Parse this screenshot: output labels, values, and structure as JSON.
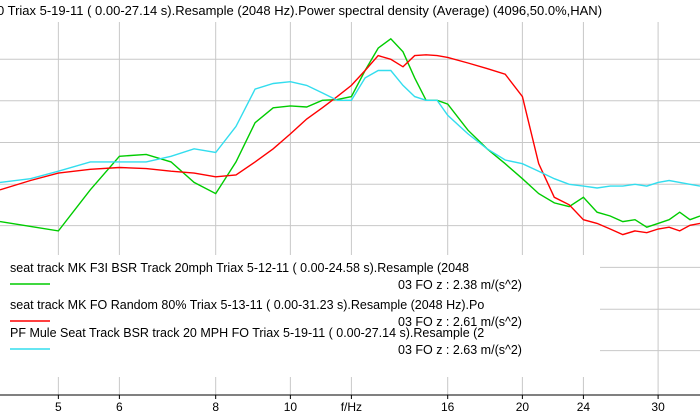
{
  "chart_data": {
    "type": "line",
    "title": "0 Triax 5-19-11 ( 0.00-27.14 s).Resample (2048 Hz).Power spectral density (Average) (4096,50.0%,HAN)",
    "xlabel": "f/Hz",
    "ylabel": "",
    "x_scale": "log",
    "xlim": [
      4.2,
      34
    ],
    "ylim": [
      0,
      1
    ],
    "grid": true,
    "x_ticks": [
      {
        "value": 5,
        "label": "5"
      },
      {
        "value": 6,
        "label": "6"
      },
      {
        "value": 8,
        "label": "8"
      },
      {
        "value": 10,
        "label": "10"
      },
      {
        "value": 12,
        "label": "f/Hz"
      },
      {
        "value": 16,
        "label": "16"
      },
      {
        "value": 20,
        "label": "20"
      },
      {
        "value": 24,
        "label": "24"
      },
      {
        "value": 30,
        "label": "30"
      }
    ],
    "y_grid": [
      0.119,
      0.23,
      0.342,
      0.454,
      0.565,
      0.677,
      0.789,
      0.9
    ],
    "series": [
      {
        "name": "seat track MK  F3I BSR Track 20mph Triax 5-12-11 ( 0.00-24.58 s).Resample (2048",
        "value_label": "03 FO z   : 2.38 m/(s^2)",
        "color": "#00cc00",
        "x": [
          4.2,
          4.6,
          5.0,
          5.5,
          6.0,
          6.5,
          7.0,
          7.5,
          8.0,
          8.5,
          9.0,
          9.5,
          10.0,
          10.5,
          11.0,
          11.5,
          12.0,
          12.5,
          13.0,
          13.5,
          14.0,
          14.5,
          15.0,
          15.5,
          16.0,
          17.0,
          18.0,
          19.0,
          20.0,
          21.0,
          22.0,
          23.0,
          24.0,
          25.0,
          26.0,
          27.0,
          28.0,
          29.0,
          30.0,
          31.0,
          32.0,
          33.0,
          34.0
        ],
        "y": [
          0.465,
          0.452,
          0.44,
          0.55,
          0.64,
          0.645,
          0.625,
          0.57,
          0.54,
          0.625,
          0.73,
          0.77,
          0.775,
          0.772,
          0.79,
          0.792,
          0.8,
          0.87,
          0.93,
          0.955,
          0.92,
          0.85,
          0.79,
          0.79,
          0.78,
          0.71,
          0.66,
          0.62,
          0.58,
          0.54,
          0.515,
          0.505,
          0.53,
          0.49,
          0.48,
          0.465,
          0.47,
          0.45,
          0.46,
          0.47,
          0.49,
          0.47,
          0.48
        ]
      },
      {
        "name": "seat track MK  FO Random 80% Triax 5-13-11 ( 0.00-31.23 s).Resample (2048 Hz).Po",
        "value_label": "03 FO z   : 2.61 m/(s^2)",
        "color": "#ff0000",
        "x": [
          4.2,
          4.6,
          5.0,
          5.5,
          6.0,
          6.5,
          7.0,
          7.5,
          8.0,
          8.5,
          9.0,
          9.5,
          10.0,
          10.5,
          11.0,
          11.5,
          12.0,
          12.5,
          13.0,
          13.5,
          14.0,
          14.5,
          15.0,
          15.5,
          16.0,
          17.0,
          18.0,
          19.0,
          20.0,
          21.0,
          22.0,
          23.0,
          24.0,
          25.0,
          26.0,
          27.0,
          28.0,
          29.0,
          30.0,
          31.0,
          32.0,
          33.0,
          34.0
        ],
        "y": [
          0.55,
          0.575,
          0.595,
          0.605,
          0.61,
          0.607,
          0.6,
          0.595,
          0.585,
          0.59,
          0.625,
          0.66,
          0.7,
          0.74,
          0.77,
          0.8,
          0.83,
          0.87,
          0.91,
          0.9,
          0.88,
          0.91,
          0.912,
          0.91,
          0.905,
          0.89,
          0.875,
          0.86,
          0.8,
          0.62,
          0.53,
          0.51,
          0.47,
          0.46,
          0.445,
          0.43,
          0.44,
          0.435,
          0.445,
          0.45,
          0.44,
          0.455,
          0.46
        ]
      },
      {
        "name": "PF Mule Seat Track BSR track 20 MPH FO Triax 5-19-11 ( 0.00-27.14 s).Resample (2",
        "value_label": "03 FO z   : 2.63 m/(s^2)",
        "color": "#33ddee",
        "x": [
          4.2,
          4.6,
          5.0,
          5.5,
          6.0,
          6.5,
          7.0,
          7.5,
          8.0,
          8.5,
          9.0,
          9.5,
          10.0,
          10.5,
          11.0,
          11.5,
          12.0,
          12.5,
          13.0,
          13.5,
          14.0,
          14.5,
          15.0,
          15.5,
          16.0,
          17.0,
          18.0,
          19.0,
          20.0,
          21.0,
          22.0,
          23.0,
          24.0,
          25.0,
          26.0,
          27.0,
          28.0,
          29.0,
          30.0,
          31.0,
          32.0,
          33.0,
          34.0
        ],
        "y": [
          0.57,
          0.58,
          0.6,
          0.625,
          0.625,
          0.625,
          0.64,
          0.66,
          0.65,
          0.72,
          0.82,
          0.835,
          0.84,
          0.83,
          0.81,
          0.79,
          0.79,
          0.85,
          0.87,
          0.87,
          0.83,
          0.8,
          0.79,
          0.79,
          0.75,
          0.7,
          0.66,
          0.63,
          0.62,
          0.6,
          0.58,
          0.565,
          0.56,
          0.555,
          0.56,
          0.56,
          0.565,
          0.56,
          0.57,
          0.575,
          0.57,
          0.565,
          0.56
        ]
      }
    ]
  }
}
